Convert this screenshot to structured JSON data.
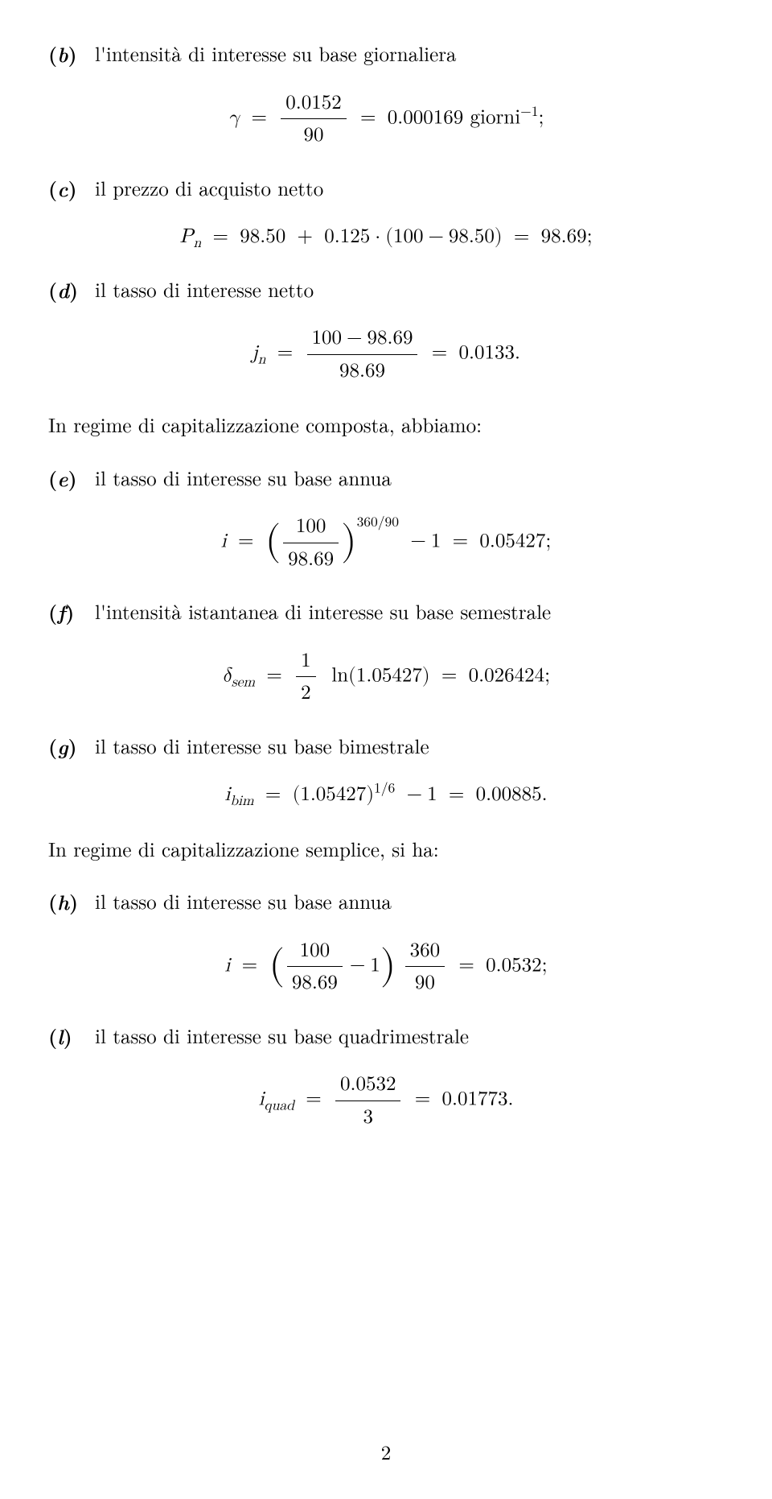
{
  "items": {
    "b": {
      "letter": "b",
      "text": "l'intensità di interesse su base giornaliera"
    },
    "c": {
      "letter": "c",
      "text": "il prezzo di acquisto netto"
    },
    "d": {
      "letter": "d",
      "text": "il tasso di interesse netto"
    },
    "e": {
      "letter": "e",
      "text": "il tasso di interesse su base annua"
    },
    "f": {
      "letter": "f",
      "text": "l'intensità istantanea di interesse su base semestrale"
    },
    "g": {
      "letter": "g",
      "text": "il tasso di interesse su base bimestrale"
    },
    "h": {
      "letter": "h",
      "text": "il tasso di interesse su base annua"
    },
    "l": {
      "letter": "l",
      "text": "il tasso di interesse su base quadrimestrale"
    }
  },
  "sections": {
    "composta": "In regime di capitalizzazione composta, abbiamo:",
    "semplice": "In regime di capitalizzazione semplice, si ha:"
  },
  "eq": {
    "b": {
      "symbol": "γ",
      "num": "0.0152",
      "den": "90",
      "result": "0.000169",
      "unit": "giorni",
      "unit_exp": "−1",
      "terminator": ";"
    },
    "c": {
      "lhs_sym": "P",
      "lhs_sub": "n",
      "a": "98.50",
      "b": "0.125",
      "c": "100",
      "d": "98.50",
      "result": "98.69",
      "terminator": ";"
    },
    "d": {
      "lhs_sym": "j",
      "lhs_sub": "n",
      "num_a": "100",
      "num_b": "98.69",
      "den": "98.69",
      "result": "0.0133",
      "terminator": "."
    },
    "e": {
      "lhs": "i",
      "num": "100",
      "den": "98.69",
      "exp": "360/90",
      "minus": "1",
      "result": "0.05427",
      "terminator": ";"
    },
    "f": {
      "lhs_sym": "δ",
      "lhs_sub": "sem",
      "coef_num": "1",
      "coef_den": "2",
      "fn": "ln",
      "arg": "1.05427",
      "result": "0.026424",
      "terminator": ";"
    },
    "g": {
      "lhs_sym": "i",
      "lhs_sub": "bim",
      "base": "1.05427",
      "exp": "1/6",
      "minus": "1",
      "result": "0.00885",
      "terminator": "."
    },
    "h": {
      "lhs": "i",
      "num": "100",
      "den": "98.69",
      "minus_in": "1",
      "out_num": "360",
      "out_den": "90",
      "result": "0.0532",
      "terminator": ";"
    },
    "l": {
      "lhs_sym": "i",
      "lhs_sub": "quad",
      "num": "0.0532",
      "den": "3",
      "result": "0.01773",
      "terminator": "."
    }
  },
  "page_number": "2"
}
